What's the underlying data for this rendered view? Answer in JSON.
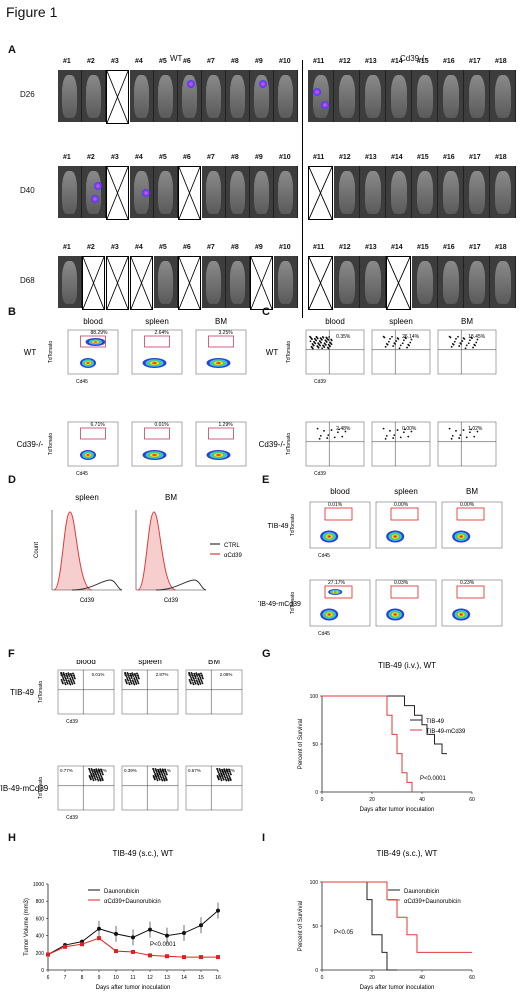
{
  "figure_title": "Figure 1",
  "panelA": {
    "label": "A",
    "group_wt": "WT",
    "group_ko": "Cd39-/-",
    "rows": [
      {
        "day": "D26",
        "crossed": [
          3
        ]
      },
      {
        "day": "D40",
        "crossed": [
          3,
          6,
          11
        ]
      },
      {
        "day": "D68",
        "crossed": [
          2,
          3,
          4,
          6,
          9,
          11,
          14
        ]
      }
    ],
    "mouse_numbers": [
      "#1",
      "#2",
      "#3",
      "#4",
      "#5",
      "#6",
      "#7",
      "#8",
      "#9",
      "#10",
      "#11",
      "#12",
      "#13",
      "#14",
      "#15",
      "#16",
      "#17",
      "#18"
    ]
  },
  "panelB": {
    "label": "B",
    "columns": [
      "blood",
      "spleen",
      "BM"
    ],
    "rows": [
      "WT",
      "Cd39-/-"
    ],
    "percents": [
      [
        "88.29%",
        "2.64%",
        "3.25%"
      ],
      [
        "6.71%",
        "0.01%",
        "1.29%"
      ]
    ],
    "ylabel": "TdTomato",
    "xlabel": "Cd45"
  },
  "panelC": {
    "label": "C",
    "columns": [
      "blood",
      "spleen",
      "BM"
    ],
    "rows": [
      "WT",
      "Cd39-/-"
    ],
    "percents": [
      [
        "0.35%",
        "26.14%",
        "18.45%"
      ],
      [
        "2.48%",
        "0.00%",
        "1.02%"
      ]
    ],
    "ylabel": "TdTomato",
    "xlabel": "Cd39"
  },
  "panelD": {
    "label": "D",
    "columns": [
      "spleen",
      "BM"
    ],
    "ylabel": "Count",
    "xlabel": "Cd39",
    "legend": [
      {
        "name": "CTRL",
        "color": "#333333"
      },
      {
        "name": "αCd39",
        "color": "#e03a3a"
      }
    ]
  },
  "panelE": {
    "label": "E",
    "columns": [
      "blood",
      "spleen",
      "BM"
    ],
    "rows": [
      "TIB-49",
      "TIB-49-mCd39"
    ],
    "percents": [
      [
        "0.01%",
        "0.00%",
        "0.00%"
      ],
      [
        "27.17%",
        "0.03%",
        "0.23%"
      ]
    ],
    "ylabel": "TdTomato",
    "xlabel": "Cd45"
  },
  "panelF": {
    "label": "F",
    "columns": [
      "blood",
      "spleen",
      "BM"
    ],
    "rows": [
      "TIB-49",
      "TIB-49-mCd39"
    ],
    "percents": [
      [
        [
          "99.99%",
          "0.01%"
        ],
        [
          "97.13%",
          "2.87%"
        ],
        [
          "97.92%",
          "2.08%"
        ]
      ],
      [
        [
          "0.77%",
          "99.23%"
        ],
        [
          "0.39%",
          "99.61%"
        ],
        [
          "0.67%",
          "99.33%"
        ]
      ]
    ],
    "ylabel": "TdTomato",
    "xlabel": "Cd39"
  },
  "panelG": {
    "label": "G",
    "title": "TIB-49 (i.v.), WT",
    "ylabel": "Percent of Survival",
    "xlabel": "Days after tumor inoculation",
    "pvalue": "P<0.0001",
    "xticks": [
      "0",
      "20",
      "40",
      "60"
    ],
    "yticks": [
      "0",
      "50",
      "100"
    ]
  },
  "panelH": {
    "label": "H",
    "title": "TIB-49 (s.c.), WT",
    "ylabel": "Tumor Volume (mm3)",
    "xlabel": "Days after tumor inoculation",
    "pvalue": "P<0.0001",
    "xticks": [
      "6",
      "7",
      "8",
      "9",
      "10",
      "11",
      "12",
      "13",
      "14",
      "15",
      "16"
    ],
    "yticks": [
      "0",
      "200",
      "400",
      "600",
      "800",
      "1000"
    ]
  },
  "panelI": {
    "label": "I",
    "title": "TIB-49 (s.c.), WT",
    "ylabel": "Percent of Survival",
    "xlabel": "Days after tumor inoculation",
    "pvalue": "P<0.05",
    "xticks": [
      "0",
      "20",
      "40",
      "60"
    ],
    "yticks": [
      "0",
      "50",
      "100"
    ]
  },
  "chart_data": [
    {
      "type": "line",
      "title": "TIB-49 (i.v.), WT",
      "xlabel": "Days after tumor inoculation",
      "ylabel": "Percent of Survival",
      "xlim": [
        0,
        60
      ],
      "ylim": [
        0,
        100
      ],
      "series": [
        {
          "name": "TIB-49",
          "color": "#222222",
          "x": [
            0,
            30,
            33,
            37,
            40,
            42,
            45,
            48,
            50
          ],
          "values": [
            100,
            100,
            90,
            80,
            70,
            60,
            50,
            40,
            40
          ]
        },
        {
          "name": "TIB-49-mCd39",
          "color": "#e03a3a",
          "x": [
            0,
            24,
            26,
            28,
            30,
            32,
            34,
            36
          ],
          "values": [
            100,
            100,
            80,
            60,
            40,
            20,
            10,
            0
          ]
        }
      ]
    },
    {
      "type": "line",
      "title": "TIB-49 (s.c.), WT",
      "xlabel": "Days after tumor inoculation",
      "ylabel": "Tumor Volume (mm3)",
      "categories": [
        6,
        7,
        8,
        9,
        10,
        11,
        12,
        13,
        14,
        15,
        16
      ],
      "ylim": [
        0,
        1000
      ],
      "series": [
        {
          "name": "Daunorubicin",
          "color": "#111111",
          "values": [
            180,
            290,
            330,
            480,
            420,
            380,
            470,
            400,
            430,
            520,
            690
          ]
        },
        {
          "name": "αCd39+Daunorubicin",
          "color": "#e02020",
          "values": [
            180,
            270,
            300,
            370,
            220,
            210,
            170,
            160,
            150,
            150,
            150
          ]
        }
      ]
    },
    {
      "type": "line",
      "title": "TIB-49 (s.c.), WT",
      "xlabel": "Days after tumor inoculation",
      "ylabel": "Percent of Survival",
      "xlim": [
        0,
        60
      ],
      "ylim": [
        0,
        100
      ],
      "series": [
        {
          "name": "Daunorubicin",
          "color": "#222222",
          "x": [
            0,
            15,
            18,
            20,
            24,
            26,
            30
          ],
          "values": [
            100,
            100,
            80,
            40,
            20,
            0,
            0
          ]
        },
        {
          "name": "αCd39+Daunorubicin",
          "color": "#e03a3a",
          "x": [
            0,
            22,
            26,
            30,
            34,
            38,
            60
          ],
          "values": [
            100,
            100,
            80,
            60,
            40,
            20,
            20
          ]
        }
      ]
    }
  ]
}
